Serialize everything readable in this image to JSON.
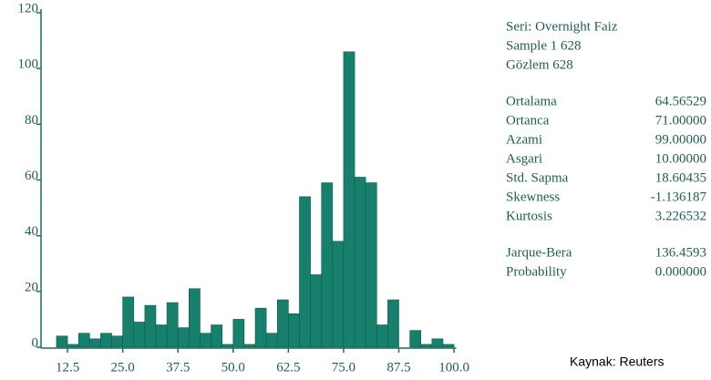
{
  "chart_data": {
    "type": "histogram",
    "bins": [
      10,
      12.5,
      15,
      17.5,
      20,
      22.5,
      25,
      27.5,
      30,
      32.5,
      35,
      37.5,
      40,
      42.5,
      45,
      47.5,
      50,
      52.5,
      55,
      57.5,
      60,
      62.5,
      65,
      67.5,
      70,
      72.5,
      75,
      77.5,
      80,
      82.5,
      85,
      87.5,
      90,
      92.5,
      95,
      97.5,
      100
    ],
    "values": [
      4,
      1,
      5,
      3,
      5,
      4,
      18,
      9,
      15,
      8,
      16,
      7,
      21,
      5,
      8,
      1,
      10,
      1,
      14,
      5,
      17,
      12,
      54,
      26,
      59,
      38,
      106,
      61,
      59,
      8,
      17,
      0,
      6,
      1,
      3,
      1
    ],
    "color": "#17806d",
    "xlim": [
      6.5,
      100.5
    ],
    "xticks": [
      12.5,
      {
        "value": 25,
        "label": "25.0"
      },
      37.5,
      {
        "value": 50,
        "label": "50.0"
      },
      62.5,
      {
        "value": 75,
        "label": "75.0"
      },
      87.5,
      {
        "value": 100,
        "label": "100.0"
      }
    ],
    "ylim": [
      0,
      120
    ],
    "yticks": [
      0,
      20,
      40,
      60,
      80,
      100,
      120
    ]
  },
  "stats": {
    "header": [
      "Seri: Overnight Faiz",
      "Sample 1 628",
      "Gözlem 628"
    ],
    "rows": [
      [
        "Ortalama",
        "64.56529"
      ],
      [
        "Ortanca",
        "71.00000"
      ],
      [
        "Azami",
        "99.00000"
      ],
      [
        "Asgari",
        "10.00000"
      ],
      [
        "Std. Sapma",
        "18.60435"
      ],
      [
        "Skewness",
        "-1.136187"
      ],
      [
        "Kurtosis",
        "3.226532"
      ]
    ],
    "tests": [
      [
        "Jarque-Bera",
        "136.4593"
      ],
      [
        "Probability",
        "0.000000"
      ]
    ]
  },
  "source": "Kaynak: Reuters"
}
